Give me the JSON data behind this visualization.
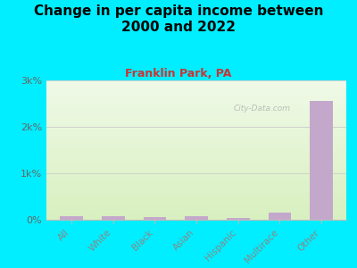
{
  "title": "Change in per capita income between\n2000 and 2022",
  "subtitle": "Franklin Park, PA",
  "categories": [
    "All",
    "White",
    "Black",
    "Asian",
    "Hispanic",
    "Multirace",
    "Other"
  ],
  "values": [
    70,
    80,
    65,
    75,
    40,
    150,
    2550
  ],
  "bar_color": "#c4a8cc",
  "title_fontsize": 11,
  "subtitle_fontsize": 9,
  "subtitle_color": "#cc3333",
  "title_color": "#000000",
  "background_outer": "#00eeff",
  "background_plot_top": "#e8f5e0",
  "background_plot_bottom": "#f8fff8",
  "ylim": [
    0,
    3000
  ],
  "yticks": [
    0,
    1000,
    2000,
    3000
  ],
  "ytick_labels": [
    "0%",
    "1k%",
    "2k%",
    "3k%"
  ],
  "watermark": "City-Data.com",
  "xlabel_color": "#888888",
  "ytick_color": "#666666",
  "grid_color": "#cccccc"
}
